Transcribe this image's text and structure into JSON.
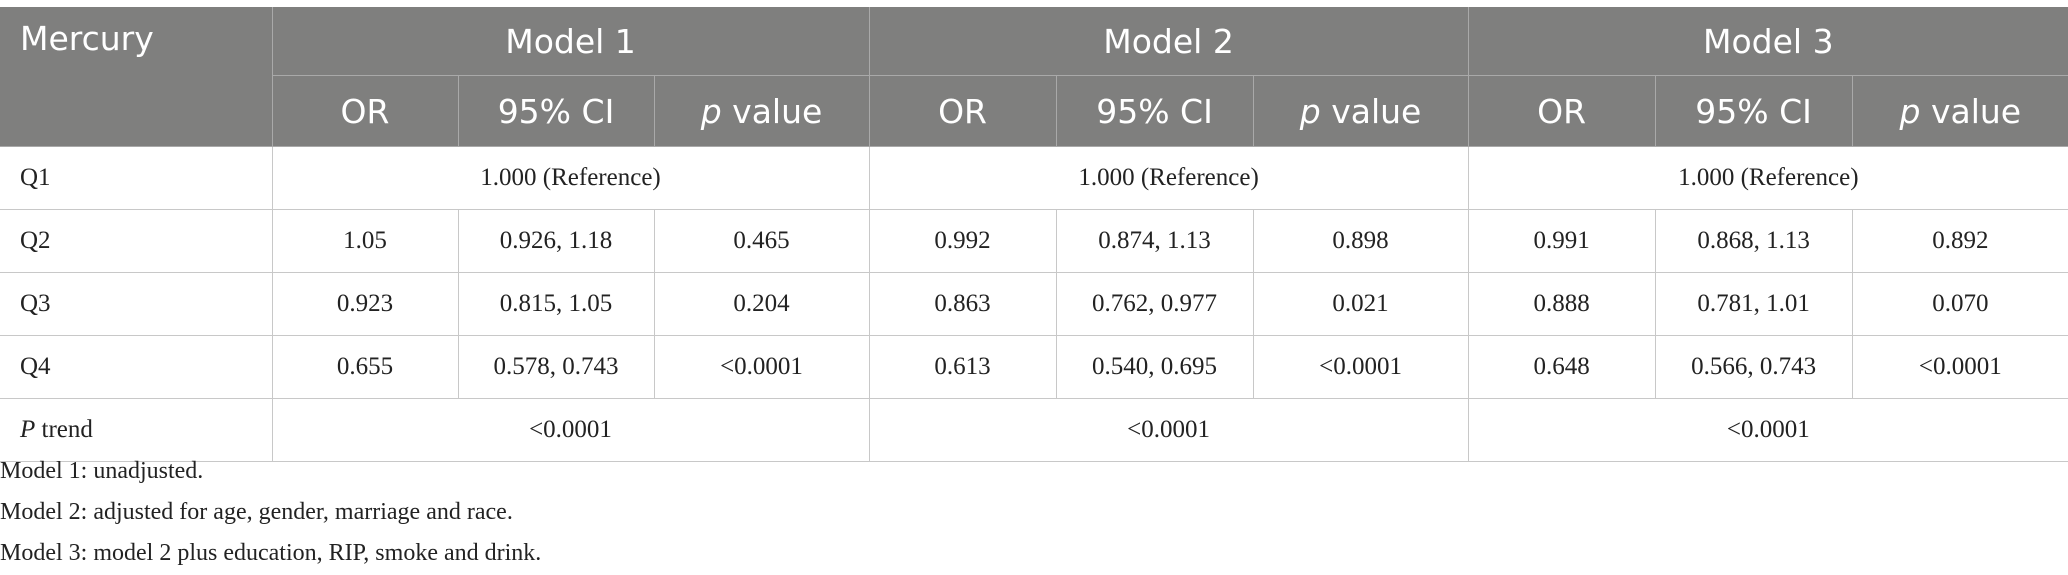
{
  "table": {
    "header": {
      "row_label": "Mercury",
      "models": [
        {
          "name": "Model 1",
          "columns": [
            "OR",
            "95% CI",
            {
              "em": "p",
              "rest": "value"
            }
          ]
        },
        {
          "name": "Model 2",
          "columns": [
            "OR",
            "95% CI",
            {
              "em": "p",
              "rest": "value"
            }
          ]
        },
        {
          "name": "Model 3",
          "columns": [
            "OR",
            "95% CI",
            {
              "em": "p",
              "rest": "value"
            }
          ]
        }
      ]
    },
    "rows": [
      {
        "label": "Q1",
        "cells": [
          "1.000 (Reference)",
          "1.000 (Reference)",
          "1.000 (Reference)"
        ]
      },
      {
        "label": "Q2",
        "cells": [
          "1.05",
          "0.926, 1.18",
          "0.465",
          "0.992",
          "0.874, 1.13",
          "0.898",
          "0.991",
          "0.868, 1.13",
          "0.892"
        ]
      },
      {
        "label": "Q3",
        "cells": [
          "0.923",
          "0.815, 1.05",
          "0.204",
          "0.863",
          "0.762, 0.977",
          "0.021",
          "0.888",
          "0.781, 1.01",
          "0.070"
        ]
      },
      {
        "label": "Q4",
        "cells": [
          "0.655",
          "0.578, 0.743",
          "<0.0001",
          "0.613",
          "0.540, 0.695",
          "<0.0001",
          "0.648",
          "0.566, 0.743",
          "<0.0001"
        ]
      },
      {
        "label": {
          "em": "P",
          "rest": "trend"
        },
        "cells": [
          "<0.0001",
          "<0.0001",
          "<0.0001"
        ]
      }
    ],
    "notes": [
      "Model 1: unadjusted.",
      "Model 2: adjusted for age, gender, marriage and race.",
      "Model 3: model 2 plus education, RIP, smoke and drink."
    ]
  }
}
